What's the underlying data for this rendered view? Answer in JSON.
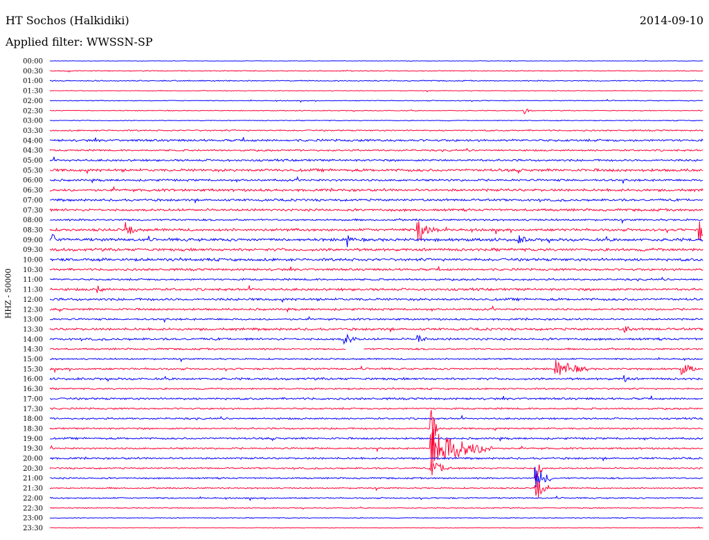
{
  "header": {
    "station": "HT Sochos (Halkidiki)",
    "date": "2014-09-10",
    "filter": "Applied filter: WWSSN-SP"
  },
  "chart_data": {
    "type": "line",
    "title": "HT Sochos (Halkidiki)",
    "subtitle": "Applied filter: WWSSN-SP",
    "date": "2014-09-10",
    "ylabel": "HHZ - 50000",
    "xlabel": "",
    "row_labels": [
      "00:00",
      "00:30",
      "01:00",
      "01:30",
      "02:00",
      "02:30",
      "03:00",
      "03:30",
      "04:00",
      "04:30",
      "05:00",
      "05:30",
      "06:00",
      "06:30",
      "07:00",
      "07:30",
      "08:00",
      "08:30",
      "09:00",
      "09:30",
      "10:00",
      "10:30",
      "11:00",
      "11:30",
      "12:00",
      "12:30",
      "13:00",
      "13:30",
      "14:00",
      "14:30",
      "15:00",
      "15:30",
      "16:00",
      "16:30",
      "17:00",
      "17:30",
      "18:00",
      "18:30",
      "19:00",
      "19:30",
      "20:00",
      "20:30",
      "21:00",
      "21:30",
      "22:00",
      "22:30",
      "23:00",
      "23:30"
    ],
    "trace_colors": [
      "#0000ff",
      "#ff0033"
    ],
    "row_noise_level": [
      0.3,
      0.5,
      0.6,
      0.4,
      0.5,
      0.5,
      0.5,
      0.8,
      1.3,
      1.0,
      1.2,
      1.6,
      1.2,
      1.5,
      1.3,
      1.4,
      1.1,
      1.5,
      1.7,
      1.6,
      1.6,
      1.3,
      1.1,
      1.4,
      1.4,
      1.2,
      1.1,
      1.4,
      1.3,
      1.0,
      0.9,
      1.1,
      1.3,
      0.9,
      1.2,
      1.0,
      1.0,
      1.0,
      1.1,
      1.0,
      1.1,
      0.9,
      0.9,
      0.8,
      0.8,
      0.6,
      0.5,
      0.4
    ],
    "events": [
      {
        "row": 17,
        "minute": 17.0,
        "amplitude": 9,
        "duration_min": 1.0
      },
      {
        "row": 17,
        "minute": 16.9,
        "amplitude": 16,
        "duration_min": 0.3
      },
      {
        "row": 17,
        "minute": 3.5,
        "amplitude": 10,
        "duration_min": 0.6
      },
      {
        "row": 17,
        "minute": 29.8,
        "amplitude": 18,
        "duration_min": 0.4
      },
      {
        "row": 18,
        "minute": 0.1,
        "amplitude": 16,
        "duration_min": 0.2
      },
      {
        "row": 18,
        "minute": 13.7,
        "amplitude": 12,
        "duration_min": 0.2
      },
      {
        "row": 18,
        "minute": 21.5,
        "amplitude": 5,
        "duration_min": 0.6
      },
      {
        "row": 28,
        "minute": 13.5,
        "amplitude": 8,
        "duration_min": 0.6
      },
      {
        "row": 28,
        "minute": 16.9,
        "amplitude": 6,
        "duration_min": 0.4
      },
      {
        "row": 31,
        "minute": 23.2,
        "amplitude": 14,
        "duration_min": 1.5
      },
      {
        "row": 31,
        "minute": 29.0,
        "amplitude": 8,
        "duration_min": 0.8
      },
      {
        "row": 37,
        "minute": 17.5,
        "amplitude": 38,
        "duration_min": 0.3
      },
      {
        "row": 39,
        "minute": 17.5,
        "amplitude": 30,
        "duration_min": 2.8
      },
      {
        "row": 41,
        "minute": 17.5,
        "amplitude": 12,
        "duration_min": 1.0
      },
      {
        "row": 41,
        "minute": 22.3,
        "amplitude": 24,
        "duration_min": 0.3
      },
      {
        "row": 42,
        "minute": 22.3,
        "amplitude": 16,
        "duration_min": 0.8
      },
      {
        "row": 43,
        "minute": 22.3,
        "amplitude": 22,
        "duration_min": 0.6
      },
      {
        "row": 23,
        "minute": 2.2,
        "amplitude": 5,
        "duration_min": 0.3
      },
      {
        "row": 27,
        "minute": 26.4,
        "amplitude": 6,
        "duration_min": 0.3
      },
      {
        "row": 32,
        "minute": 26.4,
        "amplitude": 5,
        "duration_min": 0.2
      },
      {
        "row": 5,
        "minute": 21.8,
        "amplitude": 5,
        "duration_min": 0.3
      }
    ],
    "gaps": [
      {
        "row": 29,
        "start_minute": 13.6,
        "end_minute": 14.4
      }
    ]
  }
}
